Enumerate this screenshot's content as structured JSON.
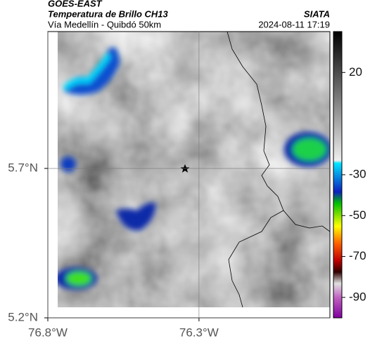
{
  "header": {
    "source": "GOES-EAST",
    "product": "Temperatura de Brillo CH13",
    "route": "Vía Medellín - Quibdó 50km",
    "brand": "SIATA",
    "timestamp": "2024-08-11 17:19"
  },
  "map": {
    "xlim": [
      -76.8,
      -75.867
    ],
    "ylim": [
      5.2,
      6.158
    ],
    "xticks": [
      {
        "value": -76.8,
        "label": "76.8°W"
      },
      {
        "value": -76.3,
        "label": "76.3°W"
      }
    ],
    "yticks": [
      {
        "value": 5.7,
        "label": "5.7°N"
      },
      {
        "value": 5.2,
        "label": "5.2°N"
      }
    ]
  },
  "colorbar": {
    "lim": [
      -100,
      40
    ],
    "ticks": [
      20,
      -30,
      -50,
      -70,
      -90
    ]
  }
}
